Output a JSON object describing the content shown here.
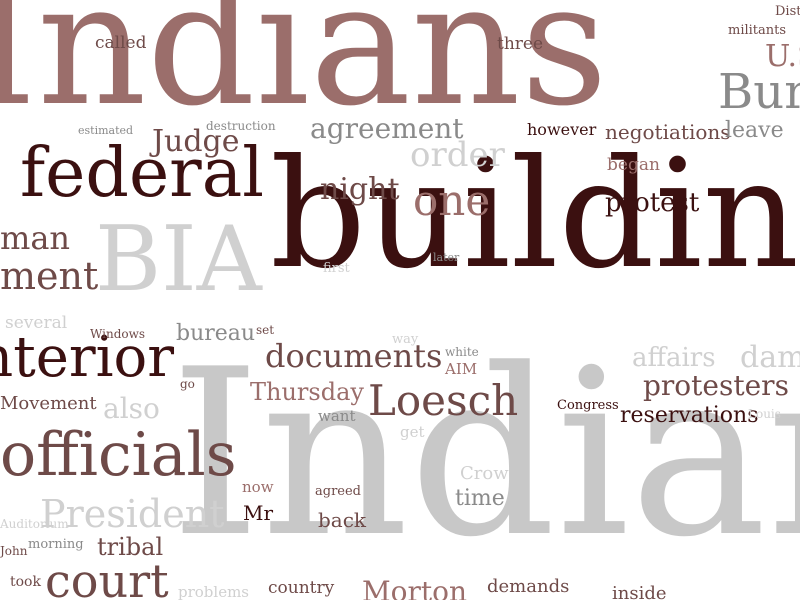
{
  "words": [
    {
      "text": "Indians",
      "color": "#9b6e6b"
    },
    {
      "text": "buildings",
      "color": "#3b1010"
    },
    {
      "text": "Indian",
      "color": "#c8c8c8"
    },
    {
      "text": "federal",
      "color": "#3b1010"
    },
    {
      "text": "BIA",
      "color": "#d0d0d0"
    },
    {
      "text": "Interior",
      "color": "#3b1010"
    },
    {
      "text": "officials",
      "color": "#6e4a48"
    },
    {
      "text": "court",
      "color": "#6e4a48"
    },
    {
      "text": "President",
      "color": "#d0d0d0"
    },
    {
      "text": "documents",
      "color": "#6e4a48"
    },
    {
      "text": "Loesch",
      "color": "#6e4a48"
    },
    {
      "text": "one",
      "color": "#9b6e6b"
    },
    {
      "text": "order",
      "color": "#d0d0d0"
    },
    {
      "text": "agreement",
      "color": "#8a8a8a"
    },
    {
      "text": "night",
      "color": "#6e4a48"
    },
    {
      "text": "Judge",
      "color": "#6e4a48"
    },
    {
      "text": "protest",
      "color": "#3b1010"
    },
    {
      "text": "negotiations",
      "color": "#6e4a48"
    },
    {
      "text": "however",
      "color": "#3b1010"
    },
    {
      "text": "leave",
      "color": "#8a8a8a"
    },
    {
      "text": "Bureau",
      "color": "#8a8a8a"
    },
    {
      "text": "U.S.",
      "color": "#9b6e6b"
    },
    {
      "text": "militants",
      "color": "#6e4a48"
    },
    {
      "text": "District",
      "color": "#6e4a48"
    },
    {
      "text": "three",
      "color": "#6e4a48"
    },
    {
      "text": "called",
      "color": "#6e4a48"
    },
    {
      "text": "estimated",
      "color": "#8a8a8a"
    },
    {
      "text": "destruction",
      "color": "#8a8a8a"
    },
    {
      "text": "began",
      "color": "#9b6e6b"
    },
    {
      "text": "first",
      "color": "#d0d0d0"
    },
    {
      "text": "later",
      "color": "#8a8a8a"
    },
    {
      "text": "several",
      "color": "#d0d0d0"
    },
    {
      "text": "Windows",
      "color": "#6e4a48"
    },
    {
      "text": "bureau",
      "color": "#8a8a8a"
    },
    {
      "text": "set",
      "color": "#6e4a48"
    },
    {
      "text": "way",
      "color": "#d0d0d0"
    },
    {
      "text": "white",
      "color": "#8a8a8a"
    },
    {
      "text": "AIM",
      "color": "#9b6e6b"
    },
    {
      "text": "affairs",
      "color": "#d0d0d0"
    },
    {
      "text": "damage",
      "color": "#d0d0d0"
    },
    {
      "text": "protesters",
      "color": "#6e4a48"
    },
    {
      "text": "reservations",
      "color": "#3b1010"
    },
    {
      "text": "Thursday",
      "color": "#9b6e6b"
    },
    {
      "text": "want",
      "color": "#8a8a8a"
    },
    {
      "text": "Congress",
      "color": "#3b1010"
    },
    {
      "text": "get",
      "color": "#d0d0d0"
    },
    {
      "text": "Louis",
      "color": "#d0d0d0"
    },
    {
      "text": "also",
      "color": "#d0d0d0"
    },
    {
      "text": "Movement",
      "color": "#6e4a48"
    },
    {
      "text": "go",
      "color": "#6e4a48"
    },
    {
      "text": "Crow",
      "color": "#d0d0d0"
    },
    {
      "text": "time",
      "color": "#8a8a8a"
    },
    {
      "text": "now",
      "color": "#9b6e6b"
    },
    {
      "text": "agreed",
      "color": "#6e4a48"
    },
    {
      "text": "Mr",
      "color": "#3b1010"
    },
    {
      "text": "back",
      "color": "#6e4a48"
    },
    {
      "text": "tribal",
      "color": "#6e4a48"
    },
    {
      "text": "morning",
      "color": "#8a8a8a"
    },
    {
      "text": "took",
      "color": "#6e4a48"
    },
    {
      "text": "country",
      "color": "#6e4a48"
    },
    {
      "text": "Morton",
      "color": "#9b6e6b"
    },
    {
      "text": "demands",
      "color": "#6e4a48"
    },
    {
      "text": "inside",
      "color": "#6e4a48"
    },
    {
      "text": "problems",
      "color": "#d0d0d0"
    },
    {
      "text": "man",
      "color": "#6e4a48"
    },
    {
      "text": "ment",
      "color": "#6e4a48"
    },
    {
      "text": "John",
      "color": "#6e4a48"
    },
    {
      "text": "Auditorium",
      "color": "#d0d0d0"
    }
  ]
}
